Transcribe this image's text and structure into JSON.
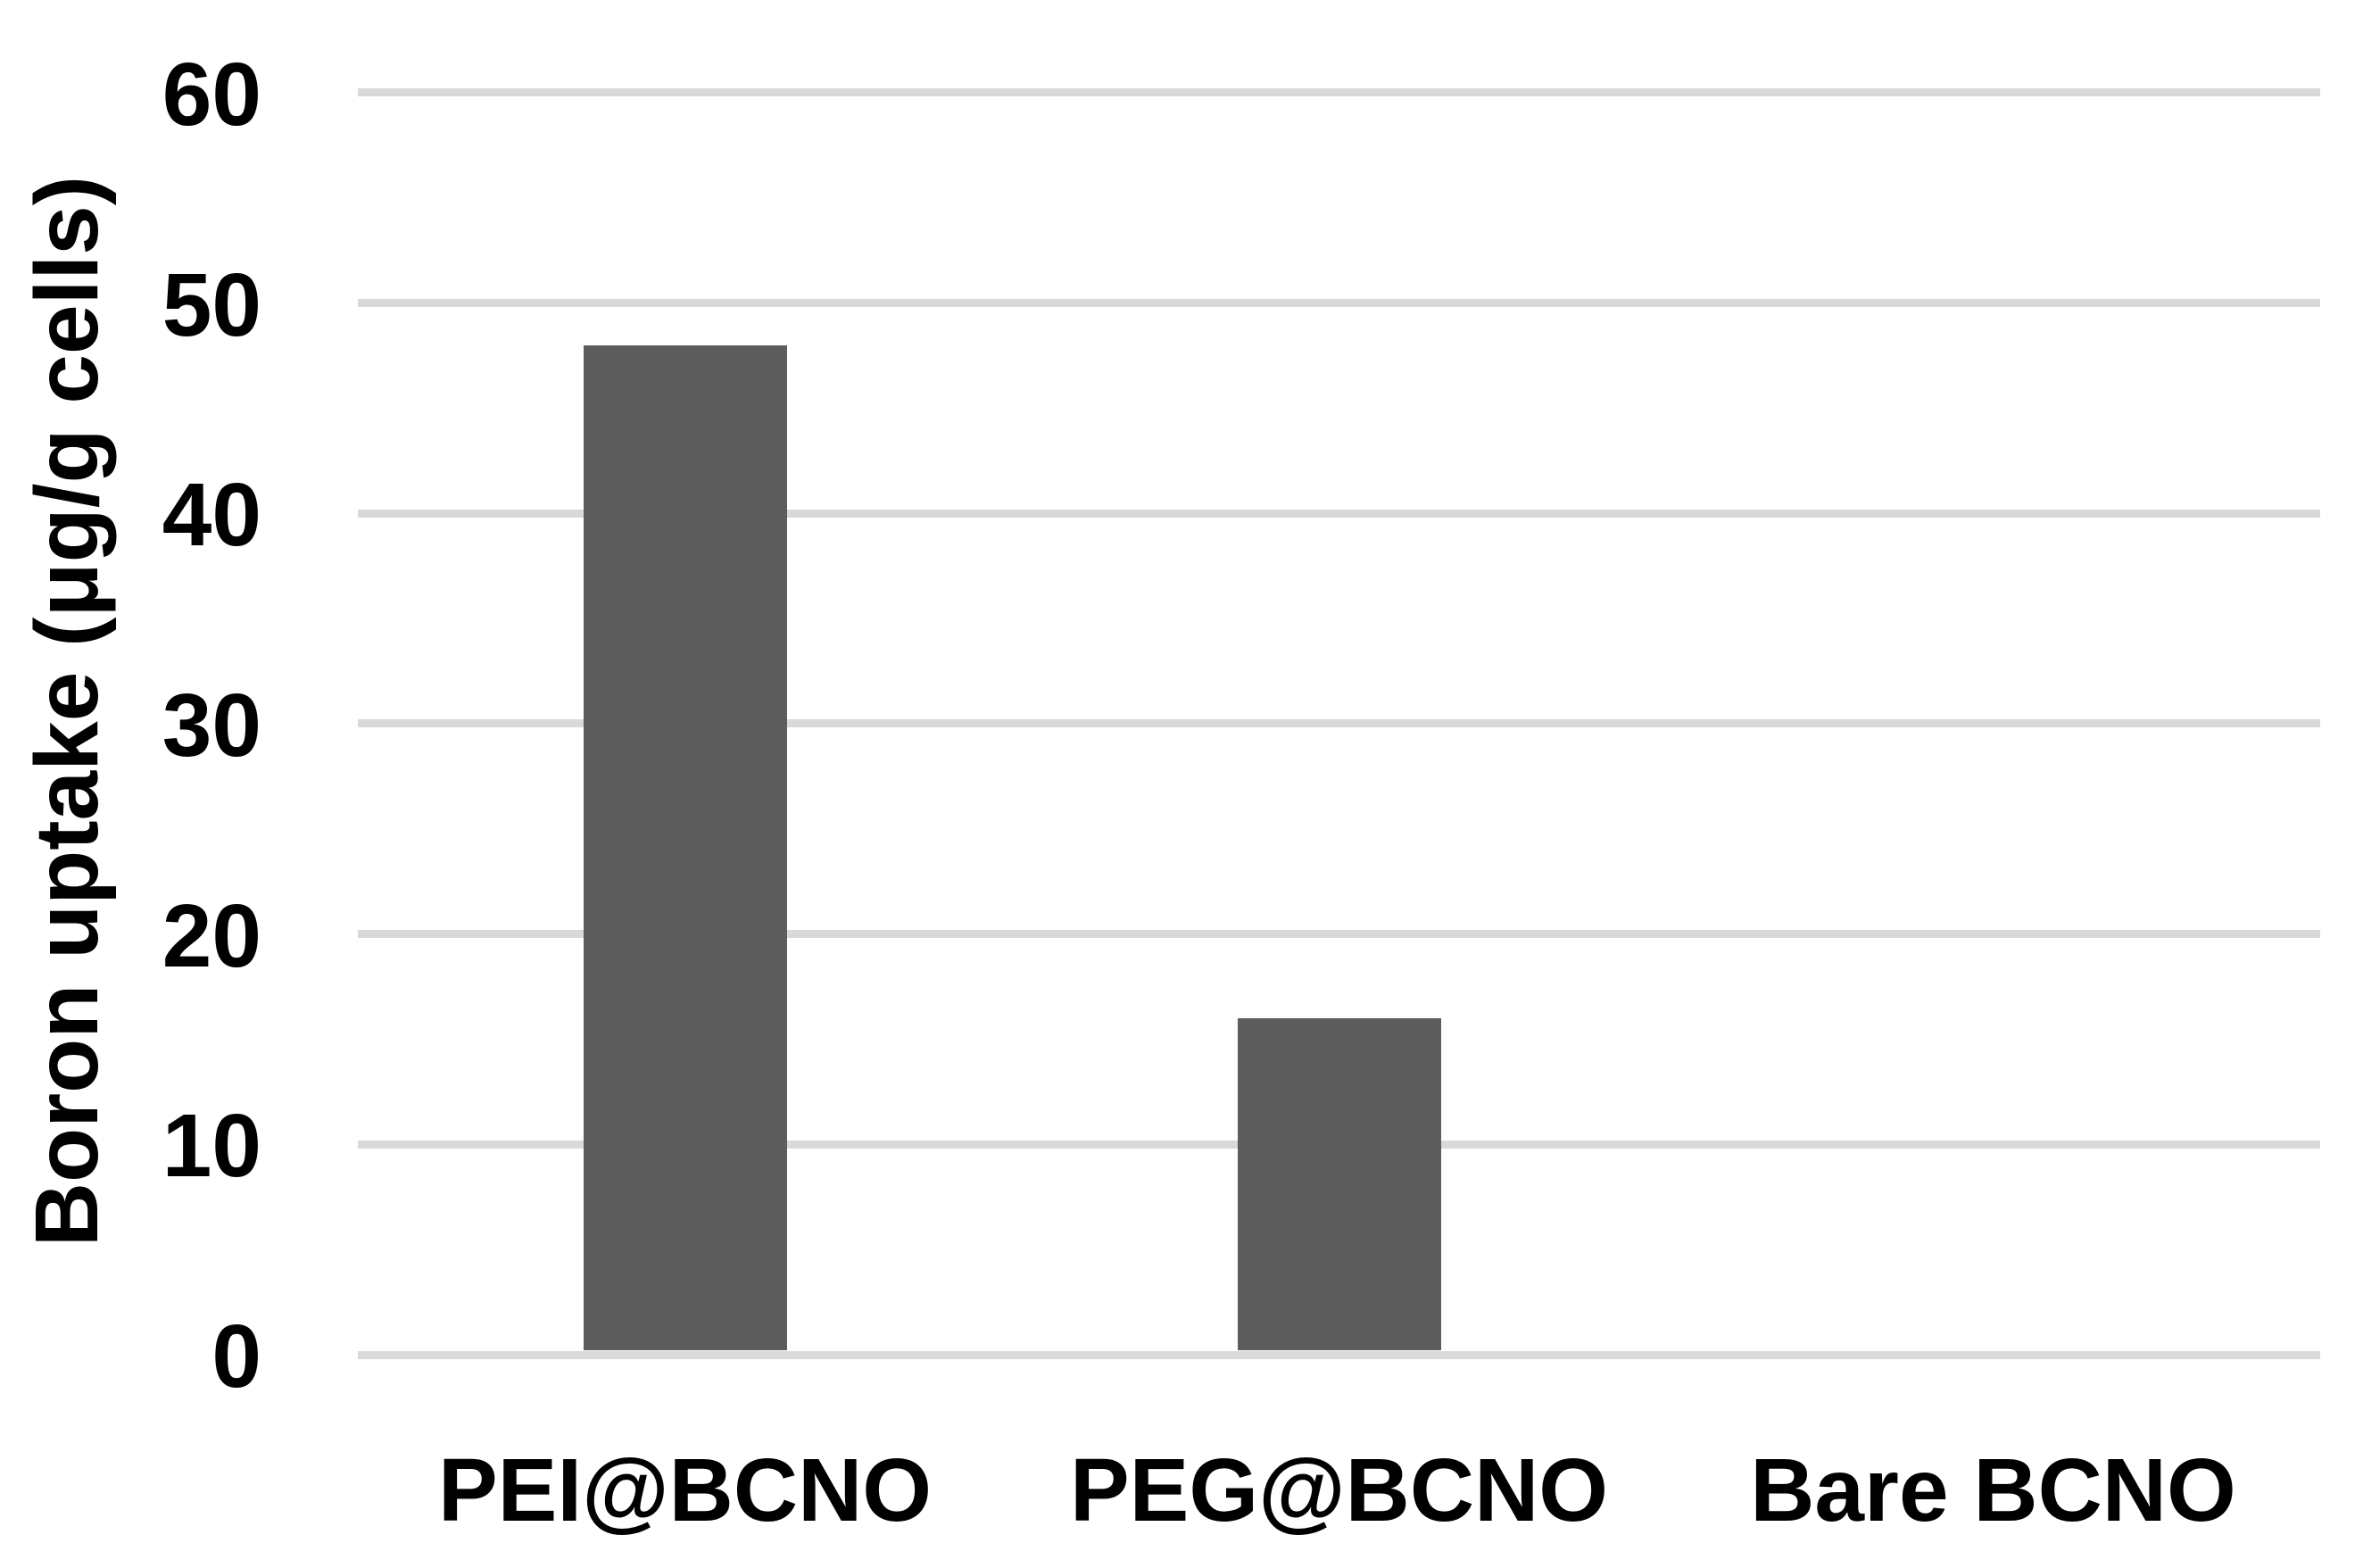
{
  "chart_data": {
    "type": "bar",
    "categories": [
      "PEI@BCNO",
      "PEG@BCNO",
      "Bare BCNO"
    ],
    "values": [
      48,
      16,
      0
    ],
    "title": "",
    "xlabel": "",
    "ylabel": "Boron uptake (μg/g cells)",
    "ylim": [
      0,
      60
    ],
    "yticks": [
      0,
      10,
      20,
      30,
      40,
      50,
      60
    ],
    "grid": true,
    "legend_position": "none",
    "colors": {
      "bar_fill": "#5D5D5D",
      "gridline": "#D9D9D9",
      "text": "#000000",
      "background": "#ffffff"
    }
  }
}
